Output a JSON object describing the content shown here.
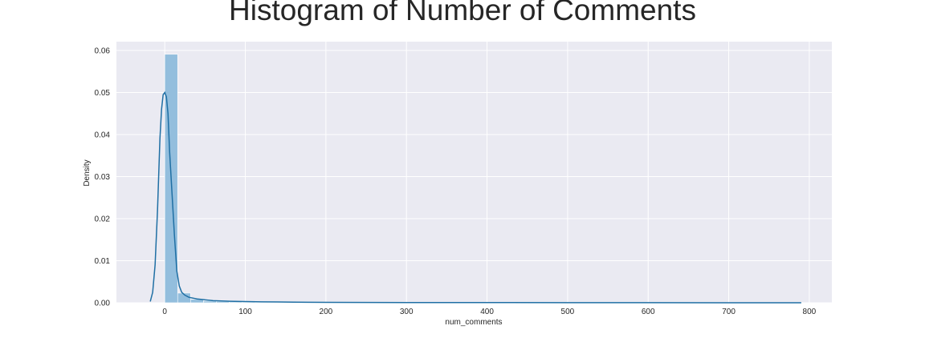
{
  "chart_data": {
    "type": "histogram",
    "title": "Histogram of Number of Comments",
    "xlabel": "num_comments",
    "ylabel": "Density",
    "xlim": [
      -60,
      828
    ],
    "ylim": [
      0,
      0.0621
    ],
    "grid": true,
    "background": "#eaeaf2",
    "x_ticks": [
      0,
      100,
      200,
      300,
      400,
      500,
      600,
      700,
      800
    ],
    "y_ticks": [
      0.0,
      0.01,
      0.02,
      0.03,
      0.04,
      0.05,
      0.06
    ],
    "y_tick_labels": [
      "0.00",
      "0.01",
      "0.02",
      "0.03",
      "0.04",
      "0.05",
      "0.06"
    ],
    "bar_color": "#93bedd",
    "kde_color": "#1f6fa4",
    "bins": [
      {
        "x0": 0,
        "x1": 16,
        "density": 0.0591
      },
      {
        "x0": 16,
        "x1": 32,
        "density": 0.0023
      },
      {
        "x0": 32,
        "x1": 48,
        "density": 0.0008
      },
      {
        "x0": 48,
        "x1": 64,
        "density": 0.0004
      },
      {
        "x0": 64,
        "x1": 80,
        "density": 0.0003
      },
      {
        "x0": 80,
        "x1": 96,
        "density": 0.0002
      },
      {
        "x0": 96,
        "x1": 112,
        "density": 0.00015
      },
      {
        "x0": 112,
        "x1": 128,
        "density": 0.0001
      },
      {
        "x0": 128,
        "x1": 144,
        "density": 0.0001
      },
      {
        "x0": 144,
        "x1": 160,
        "density": 8e-05
      },
      {
        "x0": 160,
        "x1": 176,
        "density": 6e-05
      },
      {
        "x0": 176,
        "x1": 192,
        "density": 5e-05
      },
      {
        "x0": 192,
        "x1": 208,
        "density": 5e-05
      },
      {
        "x0": 208,
        "x1": 224,
        "density": 4e-05
      },
      {
        "x0": 224,
        "x1": 240,
        "density": 4e-05
      },
      {
        "x0": 240,
        "x1": 256,
        "density": 4e-05
      },
      {
        "x0": 256,
        "x1": 272,
        "density": 3e-05
      },
      {
        "x0": 272,
        "x1": 288,
        "density": 3e-05
      }
    ],
    "kde": {
      "x": [
        -18,
        -15,
        -12,
        -9,
        -6,
        -4,
        -2,
        0,
        2,
        4,
        6,
        9,
        12,
        15,
        18,
        21,
        25,
        30,
        40,
        50,
        60,
        80,
        100,
        120,
        140,
        160,
        200,
        250,
        300,
        400,
        500,
        600,
        700,
        790
      ],
      "y": [
        0.0003,
        0.0025,
        0.009,
        0.022,
        0.039,
        0.046,
        0.0495,
        0.05,
        0.049,
        0.045,
        0.036,
        0.026,
        0.016,
        0.0075,
        0.004,
        0.0025,
        0.0018,
        0.0013,
        0.0009,
        0.0007,
        0.0005,
        0.00035,
        0.00028,
        0.00022,
        0.00018,
        0.00014,
        0.0001,
        8e-05,
        6e-05,
        4e-05,
        3e-05,
        2e-05,
        1e-05,
        1e-05
      ]
    }
  }
}
